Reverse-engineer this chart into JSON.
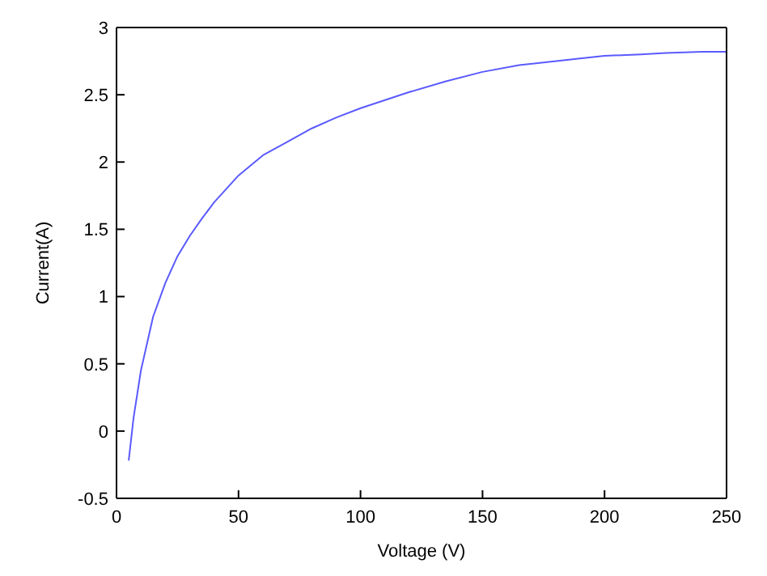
{
  "chart_data": {
    "type": "line",
    "xlabel": "Voltage (V)",
    "ylabel": "Current(A)",
    "x": [
      5,
      7,
      10,
      15,
      20,
      25,
      30,
      35,
      40,
      50,
      60,
      70,
      80,
      90,
      100,
      110,
      120,
      135,
      150,
      165,
      175,
      190,
      200,
      215,
      225,
      240,
      250
    ],
    "series": [
      {
        "color": "#5a5aff",
        "values": [
          -0.22,
          0.1,
          0.45,
          0.85,
          1.1,
          1.3,
          1.45,
          1.58,
          1.7,
          1.9,
          2.05,
          2.15,
          2.25,
          2.33,
          2.4,
          2.46,
          2.52,
          2.6,
          2.67,
          2.72,
          2.74,
          2.77,
          2.79,
          2.8,
          2.81,
          2.82,
          2.82
        ]
      }
    ],
    "xlim": [
      0,
      250
    ],
    "xticks": [
      0,
      50,
      100,
      150,
      200,
      250
    ],
    "ylim": [
      -0.5,
      3
    ],
    "yticks": [
      -0.5,
      0,
      0.5,
      1,
      1.5,
      2,
      2.5,
      3
    ],
    "grid": false,
    "legend": false,
    "marker": "none",
    "line_style": "solid"
  }
}
